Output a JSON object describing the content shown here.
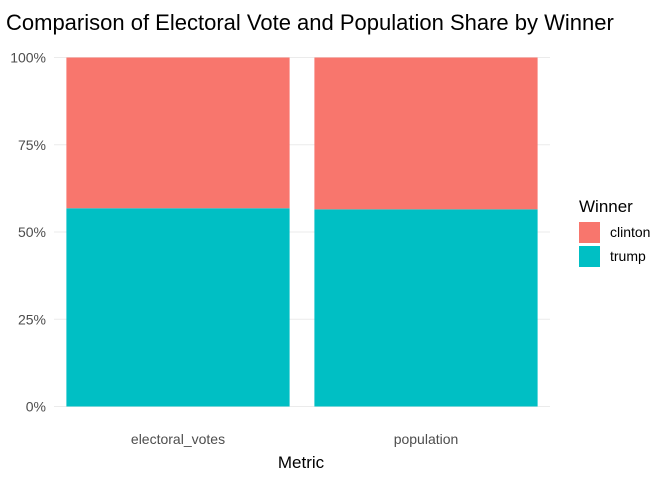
{
  "chart_data": {
    "type": "bar",
    "stacked": true,
    "title": "Comparison of Electoral Vote and Population Share by Winner",
    "xlabel": "Metric",
    "ylabel": "",
    "categories": [
      "electoral_votes",
      "population"
    ],
    "ylim": [
      0,
      1
    ],
    "yticks": [
      0,
      0.25,
      0.5,
      0.75,
      1
    ],
    "ytick_labels": [
      "0%",
      "25%",
      "50%",
      "75%",
      "100%"
    ],
    "grid": true,
    "legend": {
      "title": "Winner",
      "position": "right"
    },
    "series": [
      {
        "name": "trump",
        "color": "#00BFC4",
        "values": [
          0.568,
          0.565
        ]
      },
      {
        "name": "clinton",
        "color": "#F8766D",
        "values": [
          0.432,
          0.435
        ]
      }
    ],
    "legend_order": [
      "clinton",
      "trump"
    ]
  }
}
